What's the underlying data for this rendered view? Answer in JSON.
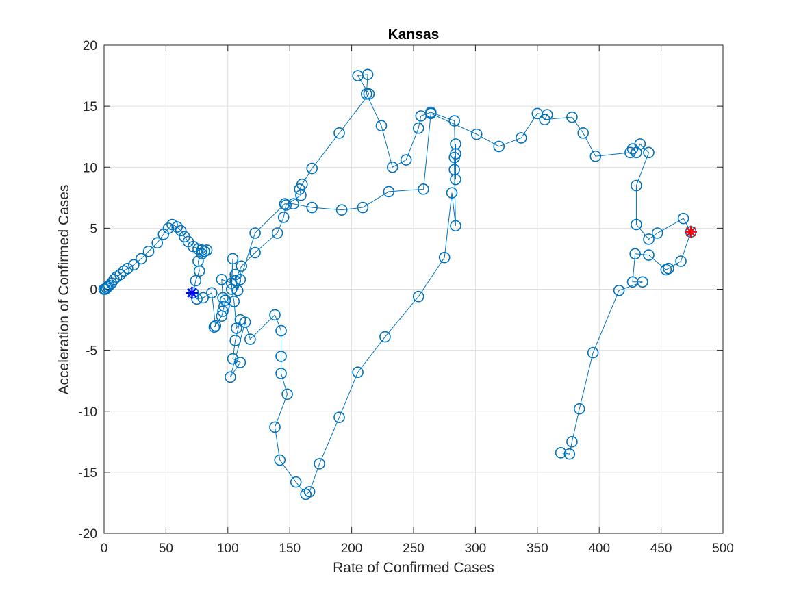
{
  "chart_data": {
    "type": "scatter",
    "title": "Kansas",
    "xlabel": "Rate of Confirmed Cases",
    "ylabel": "Acceleration of Confirmed Cases",
    "xlim": [
      0,
      500
    ],
    "ylim": [
      -20,
      20
    ],
    "xticks": [
      0,
      50,
      100,
      150,
      200,
      250,
      300,
      350,
      400,
      450,
      500
    ],
    "yticks": [
      -20,
      -15,
      -10,
      -5,
      0,
      5,
      10,
      15,
      20
    ],
    "grid": true,
    "legend": "none",
    "colors": {
      "series": "#0072BD",
      "start_marker": "#0000FF",
      "end_marker": "#FF0000"
    },
    "series": [
      {
        "marker": "circle",
        "connected": true,
        "points": [
          [
            0,
            0
          ],
          [
            1,
            0
          ],
          [
            2,
            0.1
          ],
          [
            3,
            0.2
          ],
          [
            4,
            0.3
          ],
          [
            6,
            0.5
          ],
          [
            8,
            0.8
          ],
          [
            10,
            1.0
          ],
          [
            13,
            1.2
          ],
          [
            16,
            1.5
          ],
          [
            19,
            1.7
          ],
          [
            24,
            2.0
          ],
          [
            30,
            2.5
          ],
          [
            36,
            3.1
          ],
          [
            43,
            3.8
          ],
          [
            48,
            4.5
          ],
          [
            52,
            5.0
          ],
          [
            55,
            5.3
          ],
          [
            59,
            5.1
          ],
          [
            62,
            4.8
          ],
          [
            65,
            4.3
          ],
          [
            68,
            3.9
          ],
          [
            72,
            3.5
          ],
          [
            76,
            3.3
          ],
          [
            79,
            3.2
          ],
          [
            81,
            3.1
          ],
          [
            83,
            3.2
          ],
          [
            79,
            2.9
          ],
          [
            76,
            2.3
          ],
          [
            77,
            1.5
          ],
          [
            74,
            0.7
          ],
          [
            72,
            -0.3
          ],
          [
            75,
            -0.8
          ],
          [
            80,
            -0.7
          ],
          [
            87,
            -0.3
          ],
          [
            90,
            -3.0
          ],
          [
            89,
            -3.1
          ],
          [
            95,
            -2.2
          ],
          [
            96,
            -1.8
          ],
          [
            97,
            -1.4
          ],
          [
            98,
            -0.9
          ],
          [
            96,
            -0.7
          ],
          [
            95,
            0.8
          ],
          [
            103,
            0.5
          ],
          [
            104,
            2.5
          ],
          [
            103,
            0.0
          ],
          [
            105,
            -1.0
          ],
          [
            107,
            -3.2
          ],
          [
            110,
            -2.5
          ],
          [
            106,
            -4.2
          ],
          [
            104,
            -5.7
          ],
          [
            110,
            -6.0
          ],
          [
            102,
            -7.2
          ],
          [
            114,
            -2.7
          ],
          [
            118,
            -4.1
          ],
          [
            138,
            -2.1
          ],
          [
            143,
            -3.4
          ],
          [
            143,
            -5.5
          ],
          [
            143,
            -6.9
          ],
          [
            148,
            -8.6
          ],
          [
            138,
            -11.3
          ],
          [
            142,
            -14.0
          ],
          [
            155,
            -15.8
          ],
          [
            163,
            -16.8
          ],
          [
            166,
            -16.6
          ],
          [
            174,
            -14.3
          ],
          [
            190,
            -10.5
          ],
          [
            205,
            -6.8
          ],
          [
            227,
            -3.9
          ],
          [
            254,
            -0.6
          ],
          [
            275,
            2.6
          ],
          [
            281,
            7.9
          ],
          [
            284,
            5.2
          ],
          [
            283,
            9.8
          ],
          [
            283,
            10.8
          ],
          [
            284,
            11.1
          ],
          [
            284,
            11.9
          ],
          [
            284,
            9.0
          ],
          [
            283,
            13.8
          ],
          [
            264,
            14.5
          ],
          [
            256,
            14.2
          ],
          [
            254,
            13.2
          ],
          [
            244,
            10.6
          ],
          [
            233,
            10.0
          ],
          [
            224,
            13.4
          ],
          [
            212,
            16.0
          ],
          [
            213,
            17.6
          ],
          [
            205,
            17.5
          ],
          [
            214,
            16.0
          ],
          [
            190,
            12.8
          ],
          [
            168,
            9.9
          ],
          [
            160,
            8.6
          ],
          [
            158,
            8.2
          ],
          [
            159,
            7.7
          ],
          [
            147,
            6.9
          ],
          [
            145,
            5.9
          ],
          [
            140,
            4.6
          ],
          [
            122,
            3.0
          ],
          [
            111,
            1.9
          ],
          [
            106,
            0.7
          ],
          [
            106,
            1.2
          ],
          [
            108,
            -0.1
          ],
          [
            110,
            0.8
          ],
          [
            122,
            4.6
          ],
          [
            146,
            7.0
          ],
          [
            153,
            7.0
          ],
          [
            168,
            6.7
          ],
          [
            192,
            6.5
          ],
          [
            209,
            6.7
          ],
          [
            230,
            8.0
          ],
          [
            258,
            8.2
          ],
          [
            264,
            14.4
          ],
          [
            301,
            12.7
          ],
          [
            319,
            11.7
          ],
          [
            337,
            12.4
          ],
          [
            350,
            14.4
          ],
          [
            358,
            14.3
          ],
          [
            356,
            13.9
          ],
          [
            378,
            14.1
          ],
          [
            387,
            12.8
          ],
          [
            397,
            10.9
          ],
          [
            425,
            11.2
          ],
          [
            427,
            11.5
          ],
          [
            430,
            11.2
          ],
          [
            433,
            11.9
          ],
          [
            440,
            11.2
          ],
          [
            430,
            8.5
          ],
          [
            430,
            5.3
          ],
          [
            440,
            4.1
          ],
          [
            447,
            4.6
          ],
          [
            468,
            5.8
          ],
          [
            474,
            4.7
          ],
          [
            466,
            2.3
          ],
          [
            456,
            1.7
          ],
          [
            454,
            1.6
          ],
          [
            440,
            2.8
          ],
          [
            429,
            2.9
          ],
          [
            427,
            0.6
          ],
          [
            435,
            0.6
          ],
          [
            416,
            -0.1
          ],
          [
            395,
            -5.2
          ],
          [
            384,
            -9.8
          ],
          [
            378,
            -12.5
          ],
          [
            376,
            -13.5
          ],
          [
            369,
            -13.4
          ]
        ]
      }
    ],
    "start_point": [
      71,
      -0.3
    ],
    "end_point": [
      474,
      4.7
    ]
  }
}
